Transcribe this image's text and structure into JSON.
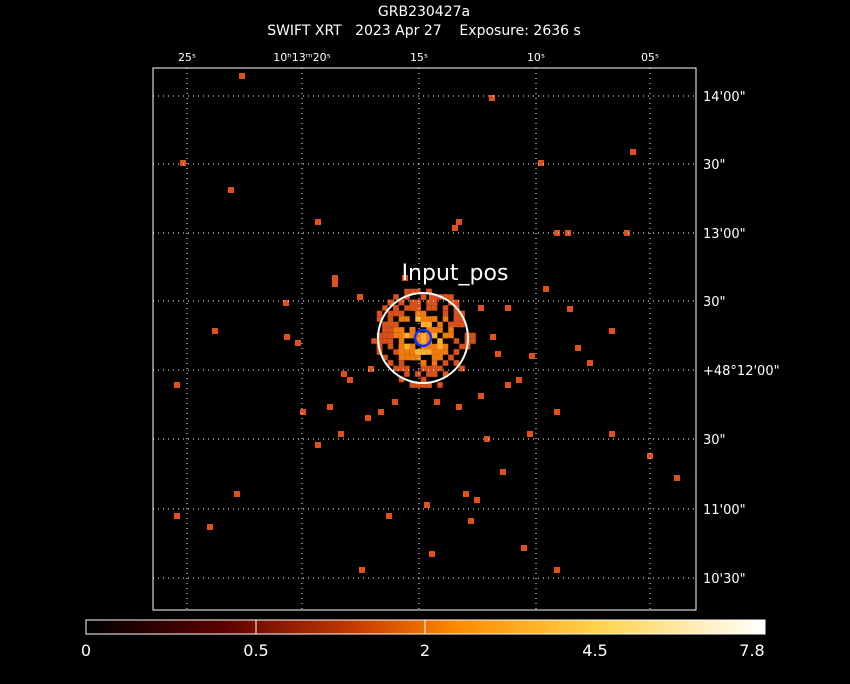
{
  "header": {
    "title": "GRB230427a",
    "subtitle": "SWIFT XRT   2023 Apr 27    Exposure: 2636 s"
  },
  "ra_ticks": [
    "25ˢ",
    "10ʰ13ᵐ20ˢ",
    "15ˢ",
    "10ˢ",
    "05ˢ"
  ],
  "dec_ticks": [
    "14'00\"",
    "30\"",
    "13'00\"",
    "30\"",
    "+48°12'00\"",
    "30\"",
    "11'00\"",
    "10'30\""
  ],
  "marker": {
    "label": "Input_pos"
  },
  "colorbar": {
    "ticks": [
      0,
      0.5,
      2,
      4.5,
      7.8
    ]
  }
}
